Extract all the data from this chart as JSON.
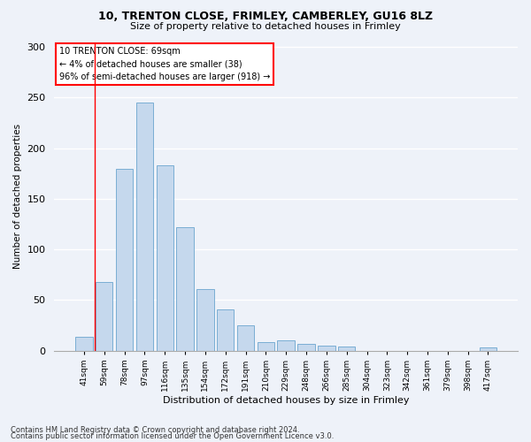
{
  "title1": "10, TRENTON CLOSE, FRIMLEY, CAMBERLEY, GU16 8LZ",
  "title2": "Size of property relative to detached houses in Frimley",
  "xlabel": "Distribution of detached houses by size in Frimley",
  "ylabel": "Number of detached properties",
  "categories": [
    "41sqm",
    "59sqm",
    "78sqm",
    "97sqm",
    "116sqm",
    "135sqm",
    "154sqm",
    "172sqm",
    "191sqm",
    "210sqm",
    "229sqm",
    "248sqm",
    "266sqm",
    "285sqm",
    "304sqm",
    "323sqm",
    "342sqm",
    "361sqm",
    "379sqm",
    "398sqm",
    "417sqm"
  ],
  "values": [
    14,
    68,
    180,
    245,
    183,
    122,
    61,
    41,
    25,
    8,
    10,
    7,
    5,
    4,
    0,
    0,
    0,
    0,
    0,
    0,
    3
  ],
  "bar_color": "#c5d8ed",
  "bar_edge_color": "#7aaed4",
  "annotation_box_text": "10 TRENTON CLOSE: 69sqm\n← 4% of detached houses are smaller (38)\n96% of semi-detached houses are larger (918) →",
  "annotation_box_color": "white",
  "annotation_box_edge_color": "red",
  "vline_x": 0.55,
  "ylim": [
    0,
    305
  ],
  "yticks": [
    0,
    50,
    100,
    150,
    200,
    250,
    300
  ],
  "footer1": "Contains HM Land Registry data © Crown copyright and database right 2024.",
  "footer2": "Contains public sector information licensed under the Open Government Licence v3.0.",
  "bg_color": "#eef2f9",
  "plot_bg_color": "#eef2f9"
}
